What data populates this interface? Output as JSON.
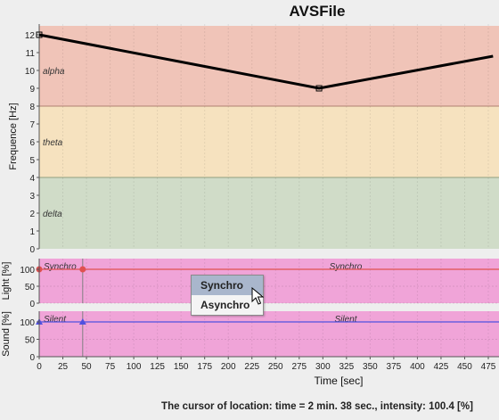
{
  "title": "AVSFile",
  "frequency_chart": {
    "ylabel": "Frequence [Hz]",
    "yticks": [
      "0",
      "1",
      "2",
      "3",
      "4",
      "5",
      "6",
      "7",
      "8",
      "9",
      "10",
      "11",
      "12"
    ],
    "bands": [
      {
        "name": "alpha",
        "from": 8,
        "to": 12.5,
        "color": "#f0c4b8"
      },
      {
        "name": "theta",
        "from": 4,
        "to": 8,
        "color": "#f6e2bf"
      },
      {
        "name": "delta",
        "from": 0,
        "to": 4,
        "color": "#d0dcc8"
      }
    ],
    "series": [
      {
        "x": [
          0,
          296,
          480
        ],
        "y": [
          12,
          9,
          10.8
        ]
      }
    ]
  },
  "light_chart": {
    "ylabel": "Light [%]",
    "yticks": [
      "0",
      "50",
      "100"
    ],
    "segments": [
      "Synchro",
      "Synchro"
    ],
    "line_value": 100,
    "marker_times": [
      0,
      46
    ]
  },
  "sound_chart": {
    "ylabel": "Sound [%]",
    "yticks": [
      "0",
      "50",
      "100"
    ],
    "segments": [
      "Silent",
      "Silent"
    ],
    "line_value": 100,
    "marker_times": [
      0,
      46
    ]
  },
  "x_axis": {
    "label": "Time [sec]",
    "ticks": [
      "0",
      "25",
      "50",
      "75",
      "100",
      "125",
      "150",
      "175",
      "200",
      "225",
      "250",
      "275",
      "300",
      "325",
      "350",
      "375",
      "400",
      "425",
      "450",
      "475"
    ]
  },
  "context_menu": {
    "items": [
      "Synchro",
      "Asynchro"
    ],
    "selected": "Synchro"
  },
  "status": "The cursor of location: time = 2 min. 38 sec., intensity: 100.4 [%]",
  "colors": {
    "pink_panel": "#f0a4d8",
    "light_line": "#e05050",
    "sound_line": "#5050e0",
    "freq_line": "#000000"
  }
}
